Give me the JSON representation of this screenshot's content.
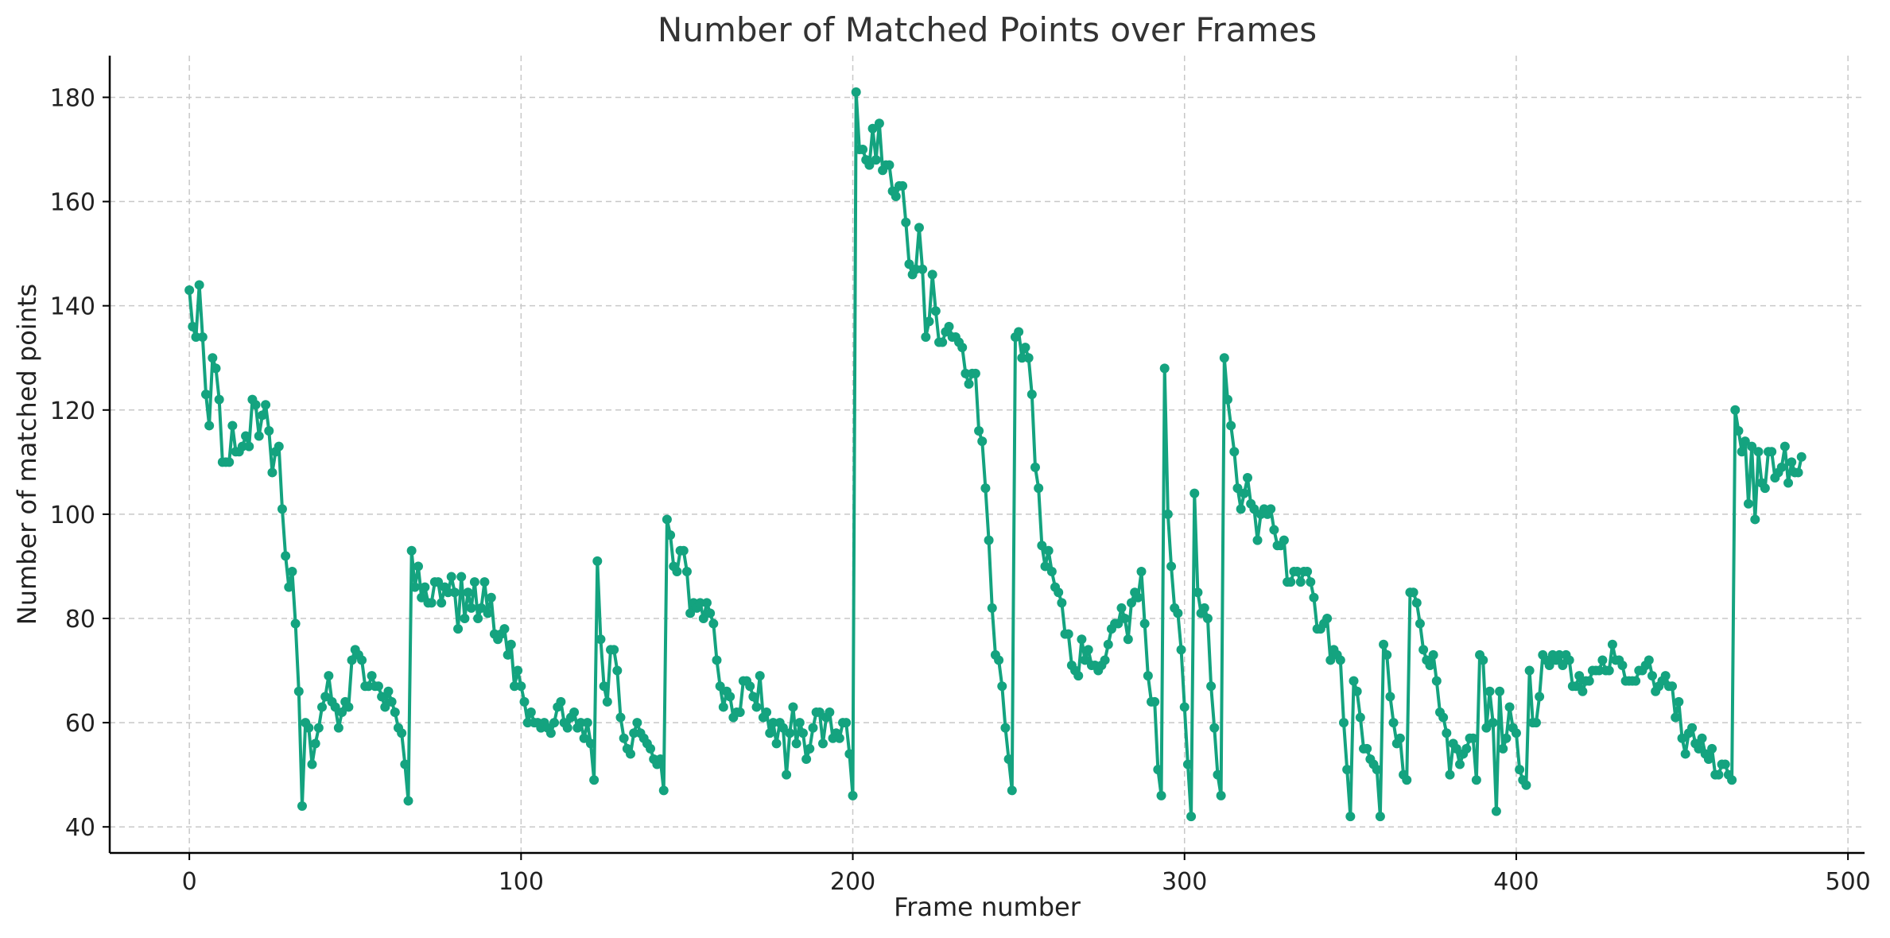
{
  "chart_data": {
    "type": "line",
    "title": "Number of Matched Points over Frames",
    "xlabel": "Frame number",
    "ylabel": "Number of matched points",
    "xlim": [
      -24,
      505
    ],
    "ylim": [
      35,
      188
    ],
    "xticks": [
      0,
      100,
      200,
      300,
      400,
      500
    ],
    "yticks": [
      40,
      60,
      80,
      100,
      120,
      140,
      160,
      180
    ],
    "grid": true,
    "color": "#14a37f",
    "series": [
      {
        "values": [
          143,
          136,
          134,
          144,
          134,
          123,
          117,
          130,
          128,
          122,
          110,
          110,
          110,
          117,
          112,
          112,
          113,
          115,
          113,
          122,
          121,
          115,
          119,
          121,
          116,
          108,
          112,
          113,
          101,
          92,
          86,
          89,
          79,
          66,
          44,
          60,
          59,
          52,
          56,
          59,
          63,
          65,
          69,
          64,
          63,
          59,
          62,
          64,
          63,
          72,
          74,
          73,
          72,
          67,
          67,
          69,
          67,
          67,
          65,
          63,
          66,
          64,
          62,
          59,
          58,
          52,
          45,
          93,
          86,
          90,
          84,
          86,
          83,
          83,
          87,
          87,
          83,
          86,
          85,
          88,
          85,
          78,
          88,
          80,
          85,
          82,
          87,
          80,
          82,
          87,
          81,
          84,
          77,
          76,
          77,
          78,
          73,
          75,
          67,
          70,
          67,
          64,
          60,
          62,
          60,
          60,
          59,
          60,
          59,
          58,
          60,
          63,
          64,
          60,
          59,
          61,
          62,
          59,
          60,
          57,
          60,
          56,
          49,
          91,
          76,
          67,
          64,
          74,
          74,
          70,
          61,
          57,
          55,
          54,
          58,
          60,
          58,
          57,
          56,
          55,
          53,
          52,
          53,
          47,
          99,
          96,
          90,
          89,
          93,
          93,
          89,
          81,
          83,
          82,
          83,
          80,
          83,
          81,
          79,
          72,
          67,
          63,
          66,
          65,
          61,
          62,
          62,
          68,
          68,
          67,
          65,
          63,
          69,
          61,
          62,
          58,
          60,
          56,
          60,
          59,
          50,
          58,
          63,
          56,
          60,
          58,
          53,
          55,
          59,
          62,
          62,
          56,
          61,
          62,
          57,
          58,
          57,
          60,
          60,
          54,
          46,
          181,
          170,
          170,
          168,
          167,
          174,
          168,
          175,
          166,
          167,
          167,
          162,
          161,
          163,
          163,
          156,
          148,
          146,
          147,
          155,
          147,
          134,
          137,
          146,
          139,
          133,
          133,
          135,
          136,
          134,
          134,
          133,
          132,
          127,
          125,
          127,
          127,
          116,
          114,
          105,
          95,
          82,
          73,
          72,
          67,
          59,
          53,
          47,
          134,
          135,
          130,
          132,
          130,
          123,
          109,
          105,
          94,
          90,
          93,
          89,
          86,
          85,
          83,
          77,
          77,
          71,
          70,
          69,
          76,
          72,
          74,
          71,
          71,
          70,
          71,
          72,
          75,
          78,
          79,
          79,
          82,
          80,
          76,
          83,
          85,
          84,
          89,
          79,
          69,
          64,
          64,
          51,
          46,
          128,
          100,
          90,
          82,
          81,
          74,
          63,
          52,
          42,
          104,
          85,
          81,
          82,
          80,
          67,
          59,
          50,
          46,
          130,
          122,
          117,
          112,
          105,
          101,
          104,
          107,
          102,
          101,
          95,
          100,
          101,
          100,
          101,
          97,
          94,
          94,
          95,
          87,
          87,
          89,
          89,
          87,
          89,
          89,
          87,
          84,
          78,
          78,
          79,
          80,
          72,
          74,
          73,
          72,
          60,
          51,
          42,
          68,
          66,
          61,
          55,
          55,
          53,
          52,
          51,
          42,
          75,
          73,
          65,
          60,
          56,
          57,
          50,
          49,
          85,
          85,
          83,
          79,
          74,
          72,
          71,
          73,
          68,
          62,
          61,
          58,
          50,
          56,
          55,
          52,
          54,
          55,
          57,
          57,
          49,
          73,
          72,
          59,
          66,
          60,
          43,
          66,
          55,
          57,
          63,
          59,
          58,
          51,
          49,
          48,
          70,
          60,
          60,
          65,
          73,
          72,
          71,
          73,
          72,
          73,
          71,
          73,
          72,
          67,
          67,
          69,
          66,
          68,
          68,
          70,
          70,
          70,
          72,
          70,
          70,
          75,
          72,
          72,
          71,
          68,
          68,
          68,
          68,
          70,
          70,
          71,
          72,
          69,
          66,
          67,
          68,
          69,
          67,
          67,
          61,
          64,
          57,
          54,
          58,
          59,
          56,
          55,
          57,
          54,
          53,
          55,
          50,
          50,
          52,
          52,
          50,
          49,
          120,
          116,
          112,
          114,
          102,
          113,
          99,
          112,
          106,
          105,
          112,
          112,
          107,
          108,
          109,
          113,
          106,
          110,
          108,
          108,
          111
        ]
      }
    ]
  }
}
